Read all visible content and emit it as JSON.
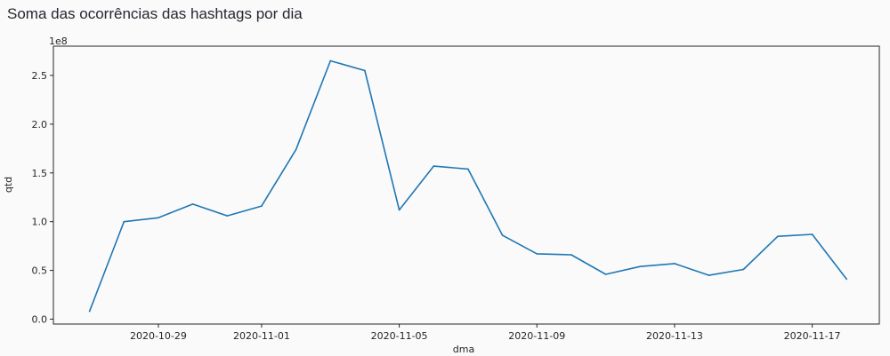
{
  "page": {
    "title": "Soma das ocorrências das hashtags por dia"
  },
  "chart_data": {
    "type": "line",
    "title": "",
    "xlabel": "dma",
    "ylabel": "qtd",
    "y_offset_label": "1e8",
    "grid": false,
    "legend": "none",
    "xlim": [
      "2020-10-26",
      "2020-11-18"
    ],
    "ylim": [
      -0.05,
      2.8
    ],
    "x_ticks": [
      "2020-10-29",
      "2020-11-01",
      "2020-11-05",
      "2020-11-09",
      "2020-11-13",
      "2020-11-17"
    ],
    "y_ticks": [
      "0.0",
      "0.5",
      "1.0",
      "1.5",
      "2.0",
      "2.5"
    ],
    "line_color": "#1f77b4",
    "series": [
      {
        "x": [
          "2020-10-27",
          "2020-10-28",
          "2020-10-29",
          "2020-10-30",
          "2020-10-31",
          "2020-11-01",
          "2020-11-02",
          "2020-11-03",
          "2020-11-04",
          "2020-11-05",
          "2020-11-06",
          "2020-11-07",
          "2020-11-08",
          "2020-11-09",
          "2020-11-10",
          "2020-11-11",
          "2020-11-12",
          "2020-11-13",
          "2020-11-14",
          "2020-11-15",
          "2020-11-16",
          "2020-11-17",
          "2020-11-18"
        ],
        "values": [
          0.08,
          1.0,
          1.04,
          1.18,
          1.06,
          1.16,
          1.74,
          2.65,
          2.55,
          1.12,
          1.57,
          1.54,
          0.86,
          0.67,
          0.66,
          0.46,
          0.54,
          0.57,
          0.45,
          0.51,
          0.85,
          0.87,
          0.41
        ]
      }
    ]
  }
}
